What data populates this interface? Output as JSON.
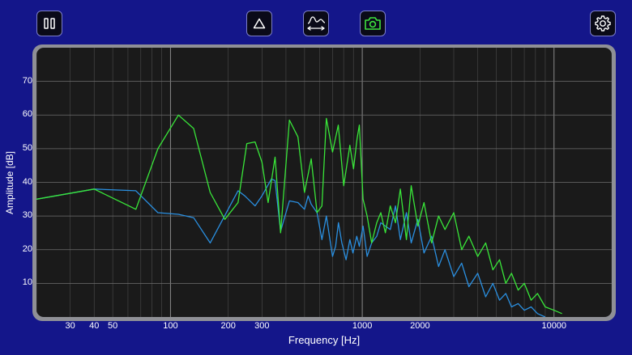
{
  "toolbar": {
    "pause_icon": "pause-icon",
    "peak_icon": "triangle-icon",
    "range_icon": "waveform-range-icon",
    "snapshot_icon": "camera-icon",
    "settings_icon": "gear-icon"
  },
  "colors": {
    "background": "#14168a",
    "plot_bg": "#1a1a1a",
    "snapshot_accent": "#3ee33e",
    "series_live": "#2a8fe0",
    "series_snapshot": "#39e639"
  },
  "chart_data": {
    "type": "line",
    "xlabel": "Frequency [Hz]",
    "ylabel": "Amplitude [dB]",
    "x_scale": "log",
    "xlim": [
      20,
      20000
    ],
    "ylim": [
      0,
      80
    ],
    "grid": true,
    "x_tick_labels": [
      "30",
      "40",
      "50",
      "100",
      "200",
      "300",
      "1000",
      "2000",
      "10000"
    ],
    "x_tick_values": [
      30,
      40,
      50,
      100,
      200,
      300,
      1000,
      2000,
      10000
    ],
    "y_tick_labels": [
      "10",
      "20",
      "30",
      "40",
      "50",
      "60",
      "70"
    ],
    "y_tick_values": [
      10,
      20,
      30,
      40,
      50,
      60,
      70
    ],
    "series": [
      {
        "color": "#2a8fe0",
        "x": [
          20,
          40,
          66,
          86,
          110,
          132,
          161,
          225,
          244,
          276,
          300,
          336,
          351,
          375,
          417,
          462,
          500,
          522,
          542,
          581,
          616,
          650,
          700,
          726,
          751,
          783,
          823,
          862,
          894,
          936,
          966,
          1010,
          1060,
          1120,
          1190,
          1250,
          1320,
          1400,
          1490,
          1580,
          1700,
          1800,
          1950,
          2100,
          2300,
          2500,
          2700,
          3000,
          3300,
          3600,
          4000,
          4400,
          4800,
          5200,
          5600,
          6000,
          6500,
          7000,
          7600,
          8200,
          9000
        ],
        "y": [
          35,
          38,
          37.5,
          31,
          30.5,
          29.5,
          22,
          37.5,
          36,
          33,
          36,
          41,
          40.5,
          25.5,
          34.5,
          34,
          32,
          36,
          33.5,
          31,
          23,
          30,
          18,
          21,
          28,
          22,
          17,
          23,
          19,
          24,
          21,
          27,
          18,
          22,
          24,
          28,
          27,
          26,
          33,
          23,
          31,
          22,
          29,
          19,
          24,
          15,
          20,
          12,
          16,
          9,
          13,
          6,
          10,
          5,
          7,
          3,
          4,
          2,
          3,
          1,
          0
        ]
      },
      {
        "color": "#39e639",
        "x": [
          20,
          40,
          66,
          86,
          110,
          132,
          161,
          192,
          225,
          250,
          276,
          300,
          323,
          351,
          375,
          417,
          462,
          500,
          542,
          581,
          616,
          650,
          700,
          750,
          800,
          862,
          900,
          940,
          966,
          1010,
          1060,
          1120,
          1190,
          1250,
          1320,
          1400,
          1490,
          1580,
          1700,
          1800,
          1950,
          2100,
          2300,
          2500,
          2700,
          3000,
          3300,
          3600,
          4000,
          4400,
          4800,
          5200,
          5600,
          6000,
          6500,
          7000,
          7600,
          8200,
          9000,
          10000,
          11000
        ],
        "y": [
          35,
          38,
          32,
          50,
          60,
          56,
          37,
          29,
          34,
          51.5,
          52,
          46,
          34,
          47.5,
          25,
          58.5,
          53.5,
          37,
          47,
          31,
          33,
          59,
          49,
          57,
          39,
          51,
          44,
          53,
          57,
          35,
          30,
          22,
          28,
          31,
          25,
          33,
          28,
          38,
          23,
          39,
          27,
          34,
          22,
          30,
          26,
          31,
          20,
          24,
          18,
          22,
          14,
          17,
          10,
          13,
          8,
          10,
          5,
          7,
          3,
          2,
          1
        ]
      }
    ]
  }
}
